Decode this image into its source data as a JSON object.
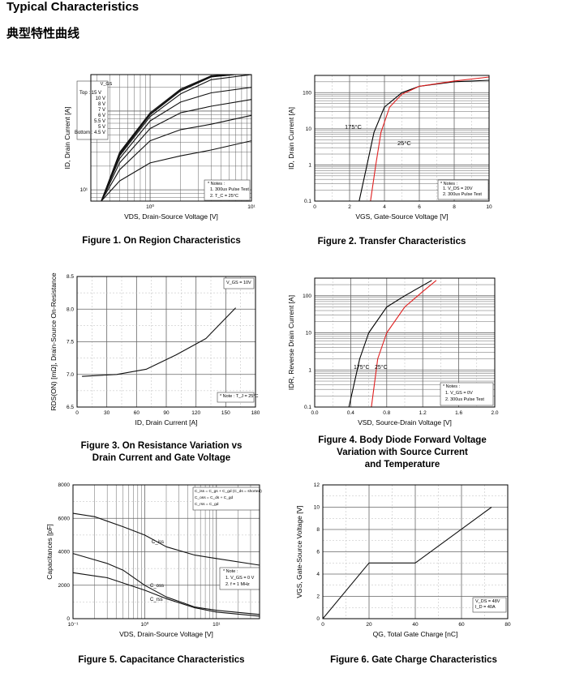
{
  "page": {
    "title": "Typical Characteristics",
    "subtitle": "典型特性曲线"
  },
  "captions": [
    "Figure 1. On Region Characteristics",
    "Figure 2. Transfer Characteristics",
    "Figure 3. On Resistance Variation vs\nDrain Current and Gate Voltage",
    "Figure 4. Body Diode Forward Voltage\nVariation with Source Current\nand Temperature",
    "Figure 5. Capacitance Characteristics",
    "Figure 6. Gate Charge Characteristics"
  ],
  "chart_data": [
    {
      "type": "line",
      "title": "Figure 1. On Region Characteristics",
      "xlabel": "V_DS, Drain-Source Voltage [V]",
      "ylabel": "I_D, Drain Current [A]",
      "xscale": "log",
      "yscale": "log",
      "xlim": [
        0.26,
        10
      ],
      "ylim": [
        7.2,
        290
      ],
      "xticks": [
        {
          "v": 1,
          "l": "10⁰"
        },
        {
          "v": 10,
          "l": "10¹"
        }
      ],
      "yticks": [
        {
          "v": 10,
          "l": "10¹"
        },
        {
          "v": 100,
          "l": "10²"
        }
      ],
      "annotations": [
        "V_GS",
        "Top :    15 V",
        "10 V",
        "8 V",
        "7 V",
        "6 V",
        "5.5 V",
        "5 V",
        "Bottom : 4.5 V",
        "* Notes :",
        "1. 300us Pulse Test",
        "2. T_C = 25°C"
      ],
      "series": [
        {
          "name": "15 V",
          "x": [
            0.33,
            0.5,
            1,
            2,
            4,
            6
          ],
          "y": [
            7.2,
            30,
            95,
            190,
            280,
            290
          ]
        },
        {
          "name": "10 V",
          "x": [
            0.33,
            0.5,
            1,
            2,
            4,
            6
          ],
          "y": [
            7.2,
            29,
            92,
            185,
            275,
            290
          ]
        },
        {
          "name": "8 V",
          "x": [
            0.33,
            0.5,
            1,
            2,
            4,
            7
          ],
          "y": [
            7.2,
            28,
            90,
            180,
            270,
            290
          ]
        },
        {
          "name": "7 V",
          "x": [
            0.33,
            0.5,
            1,
            2,
            4,
            10
          ],
          "y": [
            7.2,
            27,
            85,
            165,
            250,
            290
          ]
        },
        {
          "name": "6 V",
          "x": [
            0.33,
            0.5,
            1,
            2,
            4,
            10
          ],
          "y": [
            7.2,
            25,
            75,
            130,
            170,
            200
          ]
        },
        {
          "name": "5.5 V",
          "x": [
            0.33,
            0.5,
            1,
            2,
            4,
            10
          ],
          "y": [
            7.2,
            22,
            60,
            95,
            115,
            140
          ]
        },
        {
          "name": "5 V",
          "x": [
            0.33,
            0.5,
            1,
            2,
            4,
            10
          ],
          "y": [
            7.2,
            18,
            42,
            58,
            68,
            88
          ]
        },
        {
          "name": "4.5 V",
          "x": [
            0.33,
            0.5,
            1,
            2,
            4,
            10
          ],
          "y": [
            7.2,
            13,
            22,
            27,
            32,
            42
          ]
        }
      ]
    },
    {
      "type": "line",
      "title": "Figure 2. Transfer Characteristics",
      "xlabel": "V_GS, Gate-Source Voltage [V]",
      "ylabel": "I_D, Drain Current [A]",
      "xscale": "linear",
      "yscale": "log",
      "xlim": [
        0,
        10
      ],
      "ylim": [
        0.1,
        300
      ],
      "xticks": [
        {
          "v": 0,
          "l": "0"
        },
        {
          "v": 2,
          "l": "2"
        },
        {
          "v": 4,
          "l": "4"
        },
        {
          "v": 6,
          "l": "6"
        },
        {
          "v": 8,
          "l": "8"
        },
        {
          "v": 10,
          "l": "10"
        }
      ],
      "yticks": [
        {
          "v": 0.1,
          "l": "0.1"
        },
        {
          "v": 1,
          "l": "1"
        },
        {
          "v": 10,
          "l": "10"
        },
        {
          "v": 100,
          "l": "100"
        }
      ],
      "annotations": [
        "175°C",
        "25°C",
        "* Notes :",
        "1. V_DS = 20V",
        "2. 300us Pulse Test"
      ],
      "series": [
        {
          "name": "175°C",
          "color": "#000000",
          "x": [
            2.55,
            3,
            3.4,
            4,
            5,
            6,
            8,
            10
          ],
          "y": [
            0.1,
            1,
            8,
            40,
            100,
            150,
            200,
            220
          ]
        },
        {
          "name": "25°C",
          "color": "#e02020",
          "x": [
            3.2,
            3.5,
            3.8,
            4.3,
            5,
            6,
            8,
            10
          ],
          "y": [
            0.1,
            1,
            8,
            40,
            90,
            150,
            210,
            270
          ]
        }
      ]
    },
    {
      "type": "line",
      "title": "Figure 3. On Resistance Variation vs Drain Current and Gate Voltage",
      "xlabel": "I_D, Drain Current [A]",
      "ylabel": "R_DS(ON) [mΩ], Drain-Source On-Resistance",
      "xscale": "linear",
      "yscale": "linear",
      "xlim": [
        0,
        180
      ],
      "ylim": [
        6.5,
        8.5
      ],
      "xticks": [
        {
          "v": 0,
          "l": "0"
        },
        {
          "v": 30,
          "l": "30"
        },
        {
          "v": 60,
          "l": "60"
        },
        {
          "v": 90,
          "l": "90"
        },
        {
          "v": 120,
          "l": "120"
        },
        {
          "v": 150,
          "l": "150"
        },
        {
          "v": 180,
          "l": "180"
        }
      ],
      "yticks": [
        {
          "v": 6.5,
          "l": "6.5"
        },
        {
          "v": 7,
          "l": "7.0"
        },
        {
          "v": 7.5,
          "l": "7.5"
        },
        {
          "v": 8,
          "l": "8.0"
        },
        {
          "v": 8.5,
          "l": "8.5"
        }
      ],
      "annotations": [
        "V_GS = 10V",
        "* Note : T_J = 25°C"
      ],
      "series": [
        {
          "name": "V_GS = 10V",
          "x": [
            5,
            40,
            70,
            100,
            130,
            160
          ],
          "y": [
            6.97,
            7.0,
            7.08,
            7.3,
            7.55,
            8.02
          ]
        }
      ]
    },
    {
      "type": "line",
      "title": "Figure 4. Body Diode Forward Voltage Variation with Source Current and Temperature",
      "xlabel": "V_SD, Source-Drain Voltage [V]",
      "ylabel": "I_DR, Reverse Drain Current [A]",
      "xscale": "linear",
      "yscale": "log",
      "xlim": [
        0,
        2
      ],
      "ylim": [
        0.1,
        300
      ],
      "xticks": [
        {
          "v": 0,
          "l": "0.0"
        },
        {
          "v": 0.4,
          "l": "0.4"
        },
        {
          "v": 0.8,
          "l": "0.8"
        },
        {
          "v": 1.2,
          "l": "1.2"
        },
        {
          "v": 1.6,
          "l": "1.6"
        },
        {
          "v": 2,
          "l": "2.0"
        }
      ],
      "yticks": [
        {
          "v": 0.1,
          "l": "0.1"
        },
        {
          "v": 1,
          "l": "1"
        },
        {
          "v": 10,
          "l": "10"
        },
        {
          "v": 100,
          "l": "100"
        }
      ],
      "annotations": [
        "175°C",
        "25°C",
        "* Notes :",
        "1. V_GS = 0V",
        "2. 300us Pulse Test"
      ],
      "series": [
        {
          "name": "175°C",
          "color": "#000000",
          "x": [
            0.38,
            0.5,
            0.6,
            0.8,
            1.0,
            1.3
          ],
          "y": [
            0.1,
            2,
            10,
            50,
            100,
            260
          ]
        },
        {
          "name": "25°C",
          "color": "#e02020",
          "x": [
            0.63,
            0.7,
            0.8,
            1.0,
            1.2,
            1.35
          ],
          "y": [
            0.1,
            2,
            10,
            50,
            130,
            260
          ]
        }
      ]
    },
    {
      "type": "line",
      "title": "Figure 5. Capacitance Characteristics",
      "xlabel": "V_DS, Drain-Source Voltage [V]",
      "ylabel": "Capacitances [pF]",
      "xscale": "log",
      "yscale": "linear",
      "xlim": [
        0.1,
        40
      ],
      "ylim": [
        0,
        8000
      ],
      "xticks": [
        {
          "v": 0.1,
          "l": "10⁻¹"
        },
        {
          "v": 1,
          "l": "10⁰"
        },
        {
          "v": 10,
          "l": "10¹"
        }
      ],
      "yticks": [
        {
          "v": 0,
          "l": "0"
        },
        {
          "v": 2000,
          "l": "2000"
        },
        {
          "v": 4000,
          "l": "4000"
        },
        {
          "v": 6000,
          "l": "6000"
        },
        {
          "v": 8000,
          "l": "8000"
        }
      ],
      "annotations": [
        "C_iss = C_gs + C_gd (C_ds = shorted)",
        "C_oss = C_ds + C_gd",
        "C_rss = C_gd",
        "C_iss",
        "C_oss",
        "C_rss",
        "* Note :",
        "1. V_GS = 0 V",
        "2. f = 1 MHz"
      ],
      "series": [
        {
          "name": "C_iss",
          "x": [
            0.1,
            0.2,
            0.5,
            1,
            2,
            5,
            10,
            40
          ],
          "y": [
            6300,
            6100,
            5500,
            5000,
            4300,
            3800,
            3600,
            3200
          ]
        },
        {
          "name": "C_oss",
          "x": [
            0.1,
            0.3,
            0.5,
            1,
            2,
            5,
            10,
            40
          ],
          "y": [
            3900,
            3300,
            2900,
            2000,
            1300,
            700,
            500,
            250
          ]
        },
        {
          "name": "C_rss",
          "x": [
            0.1,
            0.3,
            1,
            2,
            5,
            10,
            40
          ],
          "y": [
            2750,
            2450,
            1700,
            1200,
            650,
            400,
            150
          ]
        }
      ]
    },
    {
      "type": "line",
      "title": "Figure 6. Gate Charge Characteristics",
      "xlabel": "Q_G, Total Gate Charge [nC]",
      "ylabel": "V_GS, Gate-Source Voltage [V]",
      "xscale": "linear",
      "yscale": "linear",
      "xlim": [
        0,
        80
      ],
      "ylim": [
        0,
        12
      ],
      "xticks": [
        {
          "v": 0,
          "l": "0"
        },
        {
          "v": 20,
          "l": "20"
        },
        {
          "v": 40,
          "l": "40"
        },
        {
          "v": 60,
          "l": "60"
        },
        {
          "v": 80,
          "l": "80"
        }
      ],
      "yticks": [
        {
          "v": 0,
          "l": "0"
        },
        {
          "v": 2,
          "l": "2"
        },
        {
          "v": 4,
          "l": "4"
        },
        {
          "v": 6,
          "l": "6"
        },
        {
          "v": 8,
          "l": "8"
        },
        {
          "v": 10,
          "l": "10"
        },
        {
          "v": 12,
          "l": "12"
        }
      ],
      "annotations": [
        "V_DS = 48V",
        "I_D = 40A"
      ],
      "series": [
        {
          "name": "V_GS",
          "x": [
            0,
            20,
            40,
            73
          ],
          "y": [
            0,
            5,
            5,
            10
          ]
        }
      ]
    }
  ]
}
